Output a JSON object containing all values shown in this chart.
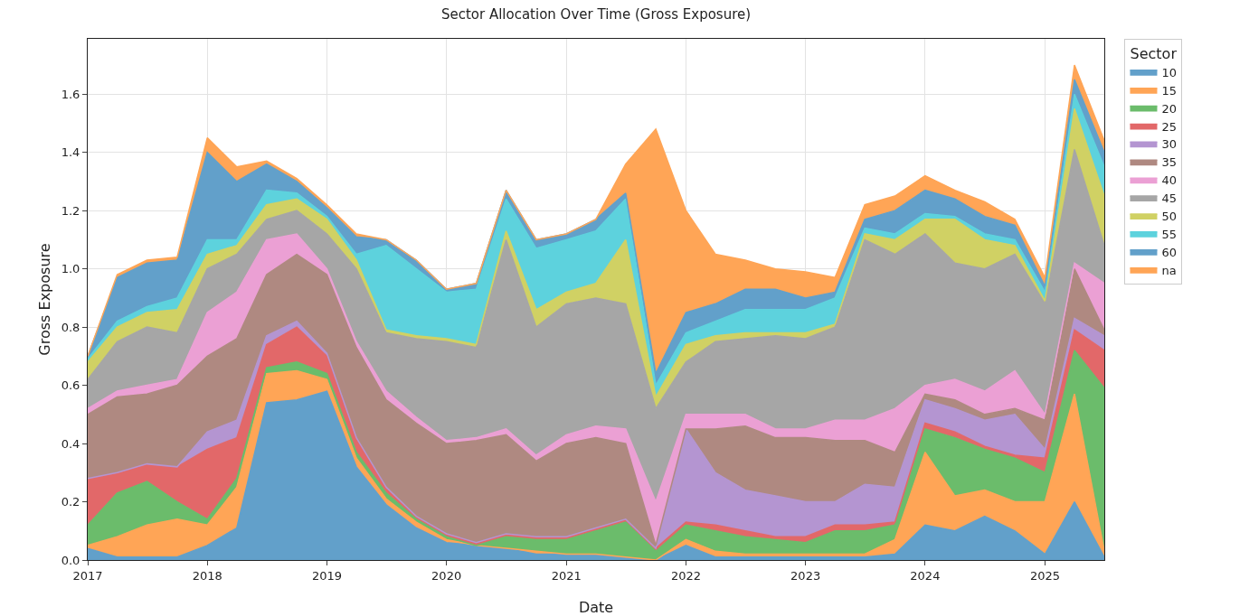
{
  "chart_data": {
    "type": "area",
    "title": "Sector Allocation Over Time (Gross Exposure)",
    "xlabel": "Date",
    "ylabel": "Gross Exposure",
    "legend_title": "Sector",
    "stacked": true,
    "grid": true,
    "legend": "top right",
    "x": [
      "2017-01",
      "2017-04",
      "2017-07",
      "2017-10",
      "2018-01",
      "2018-04",
      "2018-07",
      "2018-10",
      "2019-01",
      "2019-04",
      "2019-07",
      "2019-10",
      "2020-01",
      "2020-04",
      "2020-07",
      "2020-10",
      "2021-01",
      "2021-04",
      "2021-07",
      "2021-10",
      "2022-01",
      "2022-04",
      "2022-07",
      "2022-10",
      "2023-01",
      "2023-04",
      "2023-07",
      "2023-10",
      "2024-01",
      "2024-04",
      "2024-07",
      "2024-10",
      "2025-01",
      "2025-04",
      "2025-07"
    ],
    "xlim": [
      "2017-01",
      "2025-07"
    ],
    "xticks": [
      "2017",
      "2018",
      "2019",
      "2020",
      "2021",
      "2022",
      "2023",
      "2024",
      "2025"
    ],
    "ylim": [
      0,
      1.79
    ],
    "yticks": [
      {
        "value": 0,
        "label": "0.0"
      },
      0.2,
      0.4,
      0.6,
      0.8,
      {
        "value": 1,
        "label": "1.0"
      },
      1.2,
      1.4,
      1.6
    ],
    "series": [
      {
        "name": "10",
        "color": "#62a0ca",
        "values": [
          0.04,
          0.01,
          0.01,
          0.01,
          0.05,
          0.11,
          0.54,
          0.55,
          0.58,
          0.32,
          0.19,
          0.11,
          0.06,
          0.05,
          0.04,
          0.02,
          0.02,
          0.02,
          0.01,
          0,
          0.05,
          0.01,
          0.01,
          0.01,
          0.01,
          0.01,
          0.01,
          0.02,
          0.12,
          0.1,
          0.15,
          0.1,
          0.02,
          0.2,
          0.01
        ]
      },
      {
        "name": "15",
        "color": "#ffa556",
        "values": [
          0.01,
          0.07,
          0.11,
          0.13,
          0.07,
          0.14,
          0.1,
          0.1,
          0.04,
          0.03,
          0.02,
          0.02,
          0.01,
          0,
          0,
          0.01,
          0,
          0,
          0,
          0,
          0.02,
          0.02,
          0.01,
          0.01,
          0.01,
          0.01,
          0.01,
          0.05,
          0.25,
          0.12,
          0.09,
          0.1,
          0.18,
          0.37,
          0.02
        ]
      },
      {
        "name": "20",
        "color": "#6bbc6b",
        "values": [
          0.07,
          0.15,
          0.15,
          0.06,
          0.02,
          0.03,
          0.02,
          0.03,
          0.02,
          0.02,
          0.02,
          0.01,
          0.01,
          0,
          0.04,
          0.04,
          0.05,
          0.08,
          0.12,
          0.03,
          0.05,
          0.07,
          0.06,
          0.05,
          0.04,
          0.08,
          0.08,
          0.05,
          0.08,
          0.2,
          0.14,
          0.15,
          0.1,
          0.15,
          0.56
        ]
      },
      {
        "name": "25",
        "color": "#e26869",
        "values": [
          0.16,
          0.07,
          0.06,
          0.12,
          0.24,
          0.14,
          0.08,
          0.12,
          0.06,
          0.05,
          0.02,
          0.01,
          0.01,
          0.01,
          0.01,
          0.01,
          0.01,
          0.01,
          0.01,
          0.01,
          0.01,
          0.02,
          0.02,
          0.01,
          0.02,
          0.02,
          0.02,
          0.01,
          0.02,
          0.02,
          0.01,
          0.01,
          0.05,
          0.07,
          0.13
        ]
      },
      {
        "name": "30",
        "color": "#b495d1",
        "values": [
          0,
          0,
          0,
          0,
          0.06,
          0.06,
          0.03,
          0.02,
          0.01,
          0,
          0,
          0,
          0,
          0,
          0,
          0,
          0,
          0,
          0,
          0,
          0.32,
          0.18,
          0.14,
          0.14,
          0.12,
          0.08,
          0.14,
          0.12,
          0.08,
          0.08,
          0.09,
          0.14,
          0.03,
          0.04,
          0.05
        ]
      },
      {
        "name": "35",
        "color": "#af8981",
        "values": [
          0.22,
          0.26,
          0.24,
          0.28,
          0.26,
          0.28,
          0.21,
          0.23,
          0.27,
          0.31,
          0.3,
          0.32,
          0.31,
          0.35,
          0.34,
          0.26,
          0.32,
          0.31,
          0.26,
          0.01,
          0,
          0.15,
          0.22,
          0.2,
          0.22,
          0.21,
          0.15,
          0.12,
          0.02,
          0.03,
          0.02,
          0.02,
          0.1,
          0.17,
          0.02
        ]
      },
      {
        "name": "40",
        "color": "#eba0d4",
        "values": [
          0.02,
          0.02,
          0.03,
          0.02,
          0.15,
          0.16,
          0.12,
          0.07,
          0.02,
          0.02,
          0.03,
          0.02,
          0.01,
          0.01,
          0.02,
          0.02,
          0.03,
          0.04,
          0.05,
          0.15,
          0.05,
          0.05,
          0.04,
          0.03,
          0.03,
          0.07,
          0.07,
          0.15,
          0.03,
          0.07,
          0.08,
          0.13,
          0.02,
          0.02,
          0.16
        ]
      },
      {
        "name": "45",
        "color": "#a6a6a6",
        "values": [
          0.1,
          0.17,
          0.2,
          0.16,
          0.15,
          0.13,
          0.07,
          0.08,
          0.12,
          0.25,
          0.2,
          0.27,
          0.34,
          0.31,
          0.65,
          0.44,
          0.45,
          0.44,
          0.43,
          0.32,
          0.18,
          0.25,
          0.26,
          0.32,
          0.31,
          0.32,
          0.62,
          0.53,
          0.52,
          0.4,
          0.42,
          0.4,
          0.38,
          0.39,
          0.13
        ]
      },
      {
        "name": "50",
        "color": "#d0d164",
        "values": [
          0.06,
          0.05,
          0.05,
          0.08,
          0.05,
          0.03,
          0.05,
          0.04,
          0.05,
          0.03,
          0.01,
          0.01,
          0.01,
          0.01,
          0.03,
          0.06,
          0.04,
          0.05,
          0.22,
          0.04,
          0.06,
          0.02,
          0.02,
          0.01,
          0.02,
          0.01,
          0.02,
          0.05,
          0.05,
          0.15,
          0.1,
          0.03,
          0.01,
          0.14,
          0.17
        ]
      },
      {
        "name": "55",
        "color": "#5dd2dd",
        "values": [
          0.01,
          0.02,
          0.02,
          0.04,
          0.05,
          0.02,
          0.05,
          0.02,
          0.01,
          0.02,
          0.29,
          0.23,
          0.16,
          0.19,
          0.11,
          0.21,
          0.18,
          0.18,
          0.14,
          0.04,
          0.04,
          0.05,
          0.08,
          0.08,
          0.08,
          0.09,
          0.02,
          0.02,
          0.02,
          0.01,
          0.02,
          0.02,
          0.03,
          0.05,
          0.1
        ]
      },
      {
        "name": "60",
        "color": "#62a0ca",
        "values": [
          0.01,
          0.15,
          0.15,
          0.13,
          0.3,
          0.2,
          0.09,
          0.04,
          0.03,
          0.06,
          0.02,
          0.03,
          0.01,
          0.02,
          0.03,
          0.03,
          0.02,
          0.04,
          0.02,
          0.04,
          0.07,
          0.06,
          0.07,
          0.07,
          0.04,
          0.02,
          0.03,
          0.08,
          0.08,
          0.06,
          0.06,
          0.05,
          0.02,
          0.05,
          0.05
        ]
      },
      {
        "name": "na",
        "color": "#ffa556",
        "values": [
          0,
          0.01,
          0.01,
          0.01,
          0.05,
          0.05,
          0.01,
          0.01,
          0.01,
          0.01,
          0,
          0,
          0,
          0,
          0,
          0,
          0,
          0,
          0.1,
          0.84,
          0.35,
          0.17,
          0.1,
          0.07,
          0.09,
          0.05,
          0.05,
          0.05,
          0.05,
          0.03,
          0.05,
          0.02,
          0.03,
          0.05,
          0.04
        ]
      }
    ]
  }
}
